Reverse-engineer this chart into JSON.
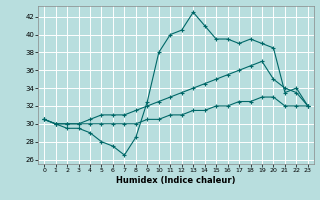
{
  "xlabel": "Humidex (Indice chaleur)",
  "bg_color": "#b8dede",
  "grid_color": "#ffffff",
  "line_color": "#006868",
  "xlim": [
    -0.5,
    23.5
  ],
  "ylim": [
    25.5,
    43.2
  ],
  "xticks": [
    0,
    1,
    2,
    3,
    4,
    5,
    6,
    7,
    8,
    9,
    10,
    11,
    12,
    13,
    14,
    15,
    16,
    17,
    18,
    19,
    20,
    21,
    22,
    23
  ],
  "yticks": [
    26,
    28,
    30,
    32,
    34,
    36,
    38,
    40,
    42
  ],
  "line1_y": [
    30.5,
    30,
    29.5,
    29.5,
    29,
    28,
    27.5,
    26.5,
    28.5,
    32.5,
    38,
    40,
    40.5,
    42.5,
    41,
    39.5,
    39.5,
    39,
    39.5,
    39,
    38.5,
    33.5,
    34,
    32
  ],
  "line2_y": [
    30.5,
    30,
    30,
    30,
    30.5,
    31,
    31,
    31,
    31.5,
    32,
    32.5,
    33,
    33.5,
    34,
    34.5,
    35,
    35.5,
    36,
    36.5,
    37,
    35,
    34,
    33.5,
    32
  ],
  "line3_y": [
    30.5,
    30,
    30,
    30,
    30,
    30,
    30,
    30,
    30,
    30.5,
    30.5,
    31,
    31,
    31.5,
    31.5,
    32,
    32,
    32.5,
    32.5,
    33,
    33,
    32,
    32,
    32
  ]
}
